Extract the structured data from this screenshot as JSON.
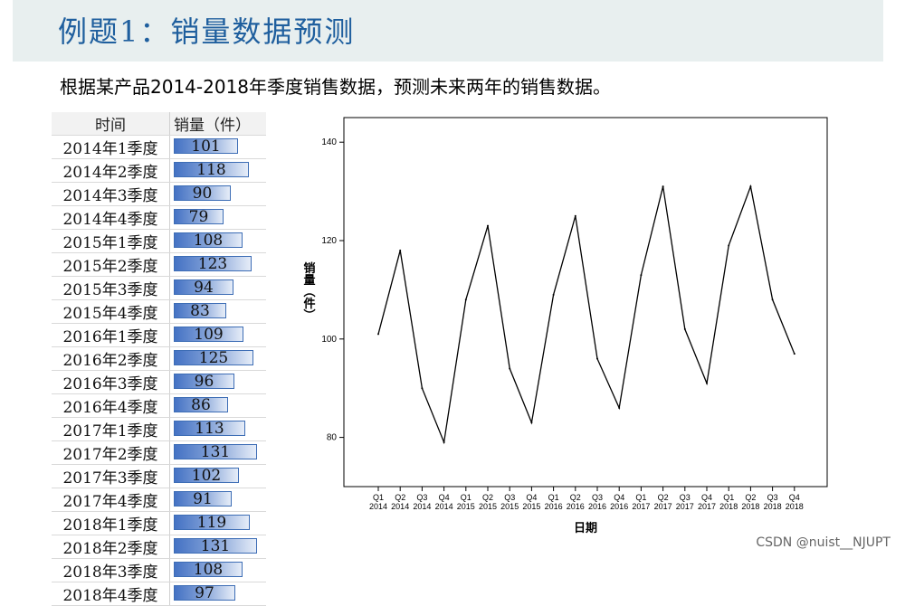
{
  "header": {
    "title": "例题1：销量数据预测"
  },
  "subtitle": "根据某产品2014-2018年季度销售数据，预测未来两年的销售数据。",
  "table": {
    "col_period": "时间",
    "col_sales": "销量（件）",
    "rows": [
      {
        "period": "2014年1季度",
        "value": 101
      },
      {
        "period": "2014年2季度",
        "value": 118
      },
      {
        "period": "2014年3季度",
        "value": 90
      },
      {
        "period": "2014年4季度",
        "value": 79
      },
      {
        "period": "2015年1季度",
        "value": 108
      },
      {
        "period": "2015年2季度",
        "value": 123
      },
      {
        "period": "2015年3季度",
        "value": 94
      },
      {
        "period": "2015年4季度",
        "value": 83
      },
      {
        "period": "2016年1季度",
        "value": 109
      },
      {
        "period": "2016年2季度",
        "value": 125
      },
      {
        "period": "2016年3季度",
        "value": 96
      },
      {
        "period": "2016年4季度",
        "value": 86
      },
      {
        "period": "2017年1季度",
        "value": 113
      },
      {
        "period": "2017年2季度",
        "value": 131
      },
      {
        "period": "2017年3季度",
        "value": 102
      },
      {
        "period": "2017年4季度",
        "value": 91
      },
      {
        "period": "2018年1季度",
        "value": 119
      },
      {
        "period": "2018年2季度",
        "value": 131
      },
      {
        "period": "2018年3季度",
        "value": 108
      },
      {
        "period": "2018年4季度",
        "value": 97
      }
    ]
  },
  "chart_data": {
    "type": "line",
    "xlabel": "日期",
    "ylabel": "销量（件）",
    "ylim": [
      70,
      145
    ],
    "yticks": [
      80,
      100,
      120,
      140
    ],
    "x_quarter": [
      "Q1",
      "Q2",
      "Q3",
      "Q4",
      "Q1",
      "Q2",
      "Q3",
      "Q4",
      "Q1",
      "Q2",
      "Q3",
      "Q4",
      "Q1",
      "Q2",
      "Q3",
      "Q4",
      "Q1",
      "Q2",
      "Q3",
      "Q4"
    ],
    "x_year": [
      "2014",
      "2014",
      "2014",
      "2014",
      "2015",
      "2015",
      "2015",
      "2015",
      "2016",
      "2016",
      "2016",
      "2016",
      "2017",
      "2017",
      "2017",
      "2017",
      "2018",
      "2018",
      "2018",
      "2018"
    ],
    "values": [
      101,
      118,
      90,
      79,
      108,
      123,
      94,
      83,
      109,
      125,
      96,
      86,
      113,
      131,
      102,
      91,
      119,
      131,
      108,
      97
    ],
    "line_color": "#000000",
    "grid": false
  },
  "watermark": "CSDN @nuist__NJUPT"
}
